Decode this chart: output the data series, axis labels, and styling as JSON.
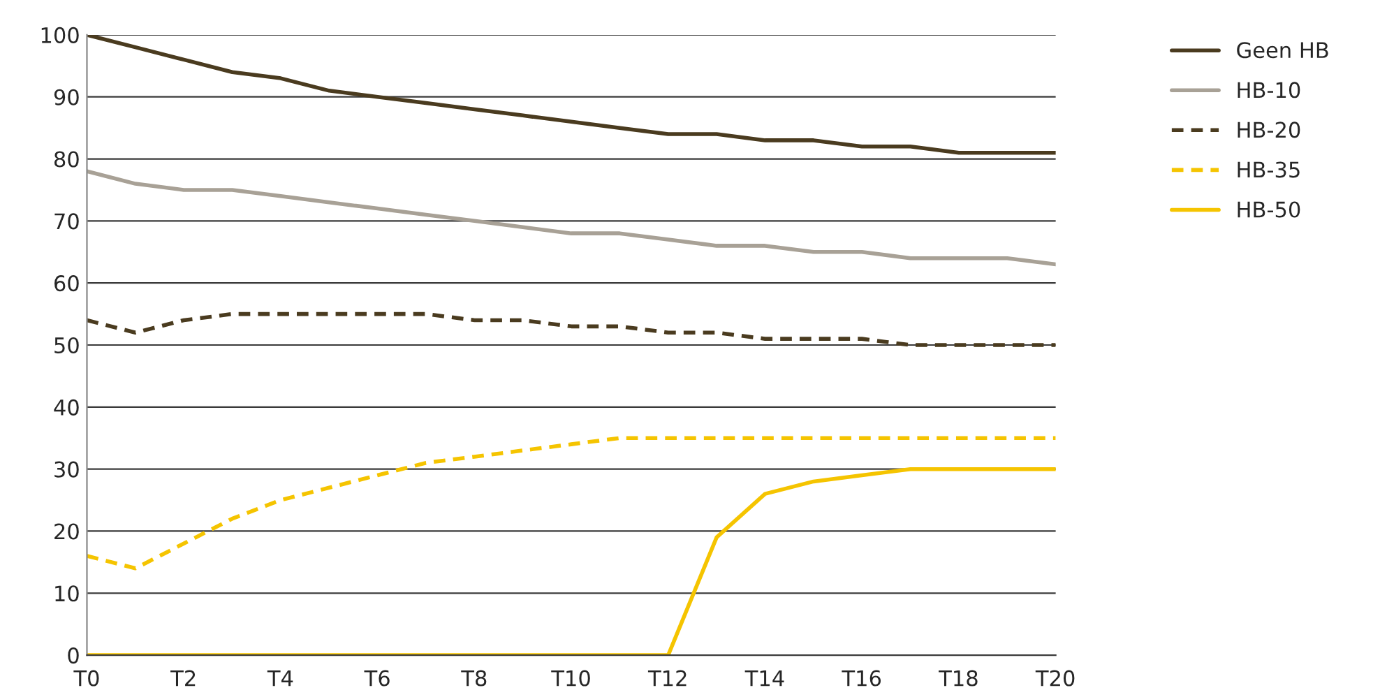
{
  "chart_data": {
    "type": "line",
    "categories": [
      "T0",
      null,
      "T2",
      null,
      "T4",
      null,
      "T6",
      null,
      "T8",
      null,
      "T10",
      null,
      "T12",
      null,
      "T14",
      null,
      "T16",
      null,
      "T18",
      null,
      "T20"
    ],
    "series": [
      {
        "name": "Geen HB",
        "color": "#4a3b1f",
        "line_style": "solid",
        "values": [
          100,
          98,
          96,
          94,
          93,
          91,
          90,
          89,
          88,
          87,
          86,
          85,
          84,
          84,
          83,
          83,
          82,
          82,
          81,
          81,
          81
        ]
      },
      {
        "name": "HB-10",
        "color": "#a8a196",
        "line_style": "solid",
        "values": [
          78,
          76,
          75,
          75,
          74,
          73,
          72,
          71,
          70,
          69,
          68,
          68,
          67,
          66,
          66,
          65,
          65,
          64,
          64,
          64,
          63
        ]
      },
      {
        "name": "HB-20",
        "color": "#4a3b1f",
        "line_style": "dashed",
        "values": [
          54,
          52,
          54,
          55,
          55,
          55,
          55,
          55,
          54,
          54,
          53,
          53,
          52,
          52,
          51,
          51,
          51,
          50,
          50,
          50,
          50
        ]
      },
      {
        "name": "HB-35",
        "color": "#f5c400",
        "line_style": "dashed",
        "values": [
          16,
          14,
          18,
          22,
          25,
          27,
          29,
          31,
          32,
          33,
          34,
          35,
          35,
          35,
          35,
          35,
          35,
          35,
          35,
          35,
          35
        ]
      },
      {
        "name": "HB-50",
        "color": "#f5c400",
        "line_style": "solid",
        "values": [
          0,
          0,
          0,
          0,
          0,
          0,
          0,
          0,
          0,
          0,
          0,
          0,
          0,
          19,
          26,
          28,
          29,
          30,
          30,
          30,
          30
        ]
      }
    ],
    "ylim": [
      0,
      100
    ],
    "yticks": [
      0,
      10,
      20,
      30,
      40,
      50,
      60,
      70,
      80,
      90,
      100
    ],
    "grid": "y",
    "legend": "top right"
  }
}
